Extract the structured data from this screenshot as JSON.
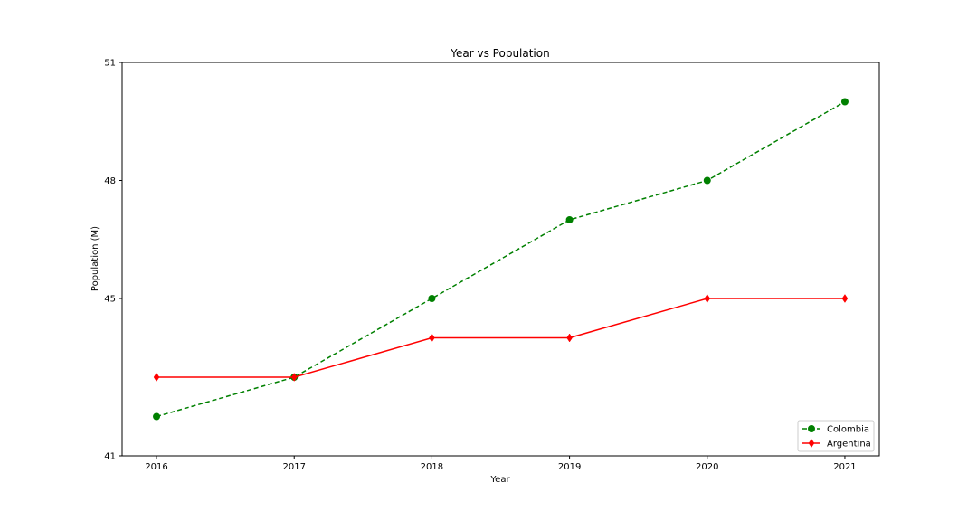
{
  "chart_data": {
    "type": "line",
    "title": "Year vs Population",
    "xlabel": "Year",
    "ylabel": "Population (M)",
    "x": [
      2016,
      2017,
      2018,
      2019,
      2020,
      2021
    ],
    "x_tick_labels": [
      "2016",
      "2017",
      "2018",
      "2019",
      "2020",
      "2021"
    ],
    "y_ticks": [
      41,
      45,
      48,
      51
    ],
    "y_tick_labels": [
      "41",
      "45",
      "48",
      "51"
    ],
    "ylim": [
      41,
      51
    ],
    "xlim": [
      2015.75,
      2021.25
    ],
    "grid": false,
    "legend_position": "lower right",
    "series": [
      {
        "name": "Colombia",
        "values": [
          42,
          43,
          45,
          47,
          48,
          50
        ],
        "color": "#008000",
        "line_style": "dashed",
        "marker": "circle"
      },
      {
        "name": "Argentina",
        "values": [
          43,
          43,
          44,
          44,
          45,
          45
        ],
        "color": "#ff0000",
        "line_style": "solid",
        "marker": "diamond"
      }
    ]
  }
}
